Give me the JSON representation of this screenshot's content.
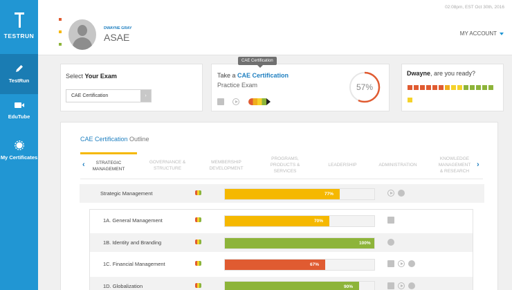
{
  "app": {
    "logo_text": "TESTRUN",
    "timestamp": "02:08pm, EST Oct 30th, 2016"
  },
  "sidebar": {
    "items": [
      {
        "label": "TestRun",
        "icon": "pencil-icon",
        "active": true
      },
      {
        "label": "EduTube",
        "icon": "video-camera-icon",
        "active": false
      },
      {
        "label": "My Certificates",
        "icon": "badge-icon",
        "active": false
      }
    ]
  },
  "header": {
    "user_name": "DWAYNE GRAY",
    "user_role": "ASAE",
    "account_label": "MY ACCOUNT",
    "accent_dots": [
      "#e05b31",
      "#f5b800",
      "#8db43a"
    ]
  },
  "exam_card": {
    "title_prefix": "Select ",
    "title_bold": "Your Exam",
    "selected_value": "CAE Certification",
    "button_icon": "chevron-right-icon"
  },
  "practice_card": {
    "tooltip": "CAE Certification",
    "title_prefix": "Take a ",
    "title_link": "CAE Certification",
    "subtitle": "Practice Exam",
    "progress_percent_label": "57%",
    "progress_fraction": 0.57,
    "ring_color": "#e05b31"
  },
  "ready_card": {
    "name": "Dwayne",
    "question": ", are you ready?",
    "squares": [
      "#e05b31",
      "#e05b31",
      "#e05b31",
      "#e05b31",
      "#e05b31",
      "#e05b31",
      "#f0ad1d",
      "#f5d22a",
      "#f5d22a",
      "#8db43a",
      "#8db43a",
      "#8db43a",
      "#8db43a",
      "#8db43a",
      "#f5d22a"
    ]
  },
  "outline": {
    "title_link": "CAE Certification",
    "title_suffix": " Outline",
    "tabs": [
      {
        "label": "STRATEGIC\nMANAGEMENT",
        "active": true
      },
      {
        "label": "GOVERNANCE &\nSTRUCTURE",
        "active": false
      },
      {
        "label": "MEMBERSHIP\nDEVELOPMENT",
        "active": false
      },
      {
        "label": "PROGRAMS,\nPRODUCTS &\nSERVICES",
        "active": false
      },
      {
        "label": "LEADERSHIP",
        "active": false
      },
      {
        "label": "ADMINISTRATION",
        "active": false
      },
      {
        "label": "KNOWLEDGE\nMANAGEMENT\n& RESEARCH",
        "active": false
      }
    ],
    "rows": [
      {
        "label": "Strategic Management",
        "percent_label": "77%",
        "fraction": 0.77,
        "color": "#f5b800",
        "icons": [
          "play-icon",
          "globe-icon"
        ]
      },
      {
        "label": "1A. General Management",
        "percent_label": "70%",
        "fraction": 0.7,
        "color": "#f5b800",
        "icons": [
          "book-icon"
        ]
      },
      {
        "label": "1B. Identity and Branding",
        "percent_label": "100%",
        "fraction": 1.0,
        "color": "#8db43a",
        "icons": [
          "globe-icon"
        ]
      },
      {
        "label": "1C. Financial Management",
        "percent_label": "67%",
        "fraction": 0.67,
        "color": "#e05b31",
        "icons": [
          "book-icon",
          "play-icon",
          "globe-icon"
        ]
      },
      {
        "label": "1D. Globalization",
        "percent_label": "90%",
        "fraction": 0.9,
        "color": "#8db43a",
        "icons": [
          "book-icon",
          "play-icon",
          "globe-icon"
        ]
      }
    ]
  }
}
